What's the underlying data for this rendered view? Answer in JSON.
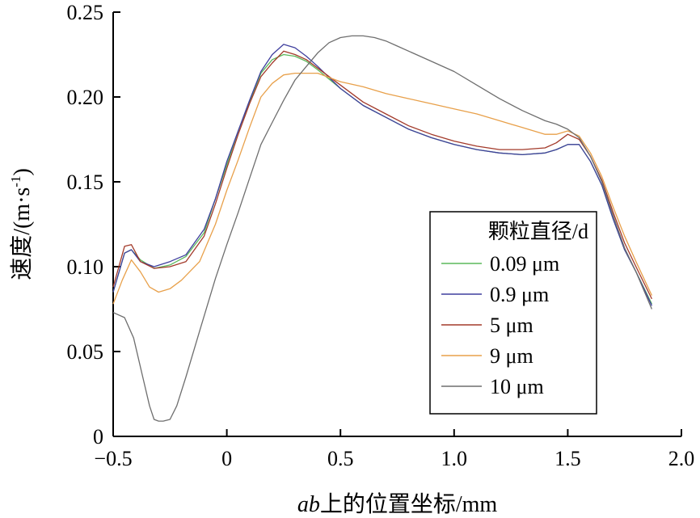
{
  "chart_data": {
    "type": "line",
    "title": "",
    "xlabel": "ab上的位置坐标/mm",
    "xlabel_italic_part": "ab",
    "xlabel_rest": "上的位置坐标/mm",
    "ylabel": "速度/(m·s⁻¹)",
    "ylabel_main": "速度/(m·s",
    "ylabel_sup": "-1",
    "ylabel_close": ")",
    "xlim": [
      -0.5,
      2.0
    ],
    "ylim": [
      0,
      0.25
    ],
    "xticks": [
      -0.5,
      0,
      0.5,
      1.0,
      1.5,
      2.0
    ],
    "xtick_labels": [
      "−0.5",
      "0",
      "0.5",
      "1.0",
      "1.5",
      "2.0"
    ],
    "yticks": [
      0,
      0.05,
      0.1,
      0.15,
      0.2,
      0.25
    ],
    "ytick_labels": [
      "0",
      "0.05",
      "0.10",
      "0.15",
      "0.20",
      "0.25"
    ],
    "grid": false,
    "legend": {
      "title": "颗粒直径/d",
      "placement": "lower-right"
    },
    "series": [
      {
        "name": "0.09 μm",
        "color": "#5cb85c",
        "points": [
          [
            -0.5,
            0.085
          ],
          [
            -0.45,
            0.108
          ],
          [
            -0.42,
            0.11
          ],
          [
            -0.38,
            0.104
          ],
          [
            -0.32,
            0.099
          ],
          [
            -0.25,
            0.101
          ],
          [
            -0.18,
            0.106
          ],
          [
            -0.1,
            0.12
          ],
          [
            -0.05,
            0.14
          ],
          [
            0,
            0.16
          ],
          [
            0.05,
            0.18
          ],
          [
            0.1,
            0.197
          ],
          [
            0.15,
            0.214
          ],
          [
            0.2,
            0.222
          ],
          [
            0.25,
            0.225
          ],
          [
            0.3,
            0.224
          ],
          [
            0.35,
            0.221
          ],
          [
            0.4,
            0.216
          ],
          [
            0.5,
            0.205
          ],
          [
            0.6,
            0.195
          ],
          [
            0.7,
            0.188
          ],
          [
            0.8,
            0.181
          ],
          [
            0.9,
            0.176
          ],
          [
            1.0,
            0.172
          ],
          [
            1.1,
            0.169
          ],
          [
            1.2,
            0.167
          ],
          [
            1.3,
            0.166
          ],
          [
            1.4,
            0.167
          ],
          [
            1.45,
            0.169
          ],
          [
            1.5,
            0.172
          ],
          [
            1.55,
            0.172
          ],
          [
            1.6,
            0.162
          ],
          [
            1.65,
            0.148
          ],
          [
            1.7,
            0.128
          ],
          [
            1.75,
            0.11
          ],
          [
            1.8,
            0.097
          ],
          [
            1.87,
            0.078
          ]
        ]
      },
      {
        "name": "0.9 μm",
        "color": "#3f3f9e",
        "points": [
          [
            -0.5,
            0.085
          ],
          [
            -0.45,
            0.108
          ],
          [
            -0.42,
            0.11
          ],
          [
            -0.38,
            0.103
          ],
          [
            -0.32,
            0.1
          ],
          [
            -0.25,
            0.103
          ],
          [
            -0.18,
            0.107
          ],
          [
            -0.1,
            0.122
          ],
          [
            -0.05,
            0.14
          ],
          [
            0,
            0.162
          ],
          [
            0.05,
            0.18
          ],
          [
            0.1,
            0.198
          ],
          [
            0.15,
            0.215
          ],
          [
            0.2,
            0.225
          ],
          [
            0.25,
            0.231
          ],
          [
            0.3,
            0.229
          ],
          [
            0.35,
            0.224
          ],
          [
            0.4,
            0.218
          ],
          [
            0.5,
            0.205
          ],
          [
            0.6,
            0.195
          ],
          [
            0.7,
            0.188
          ],
          [
            0.8,
            0.181
          ],
          [
            0.9,
            0.176
          ],
          [
            1.0,
            0.172
          ],
          [
            1.1,
            0.169
          ],
          [
            1.2,
            0.167
          ],
          [
            1.3,
            0.166
          ],
          [
            1.4,
            0.167
          ],
          [
            1.45,
            0.169
          ],
          [
            1.5,
            0.172
          ],
          [
            1.55,
            0.172
          ],
          [
            1.6,
            0.162
          ],
          [
            1.65,
            0.148
          ],
          [
            1.7,
            0.128
          ],
          [
            1.75,
            0.11
          ],
          [
            1.8,
            0.097
          ],
          [
            1.87,
            0.077
          ]
        ]
      },
      {
        "name": "5 μm",
        "color": "#a33a2a",
        "points": [
          [
            -0.5,
            0.088
          ],
          [
            -0.45,
            0.112
          ],
          [
            -0.42,
            0.113
          ],
          [
            -0.38,
            0.103
          ],
          [
            -0.32,
            0.099
          ],
          [
            -0.25,
            0.1
          ],
          [
            -0.18,
            0.103
          ],
          [
            -0.1,
            0.118
          ],
          [
            -0.05,
            0.137
          ],
          [
            0,
            0.158
          ],
          [
            0.05,
            0.178
          ],
          [
            0.1,
            0.196
          ],
          [
            0.15,
            0.212
          ],
          [
            0.2,
            0.22
          ],
          [
            0.25,
            0.227
          ],
          [
            0.3,
            0.225
          ],
          [
            0.35,
            0.222
          ],
          [
            0.4,
            0.217
          ],
          [
            0.5,
            0.207
          ],
          [
            0.6,
            0.197
          ],
          [
            0.7,
            0.19
          ],
          [
            0.8,
            0.183
          ],
          [
            0.9,
            0.178
          ],
          [
            1.0,
            0.174
          ],
          [
            1.1,
            0.171
          ],
          [
            1.2,
            0.169
          ],
          [
            1.3,
            0.169
          ],
          [
            1.4,
            0.17
          ],
          [
            1.45,
            0.173
          ],
          [
            1.5,
            0.178
          ],
          [
            1.55,
            0.175
          ],
          [
            1.6,
            0.165
          ],
          [
            1.65,
            0.151
          ],
          [
            1.7,
            0.132
          ],
          [
            1.75,
            0.114
          ],
          [
            1.8,
            0.1
          ],
          [
            1.87,
            0.081
          ]
        ]
      },
      {
        "name": "9 μm",
        "color": "#e8a04a",
        "points": [
          [
            -0.5,
            0.078
          ],
          [
            -0.46,
            0.092
          ],
          [
            -0.42,
            0.104
          ],
          [
            -0.38,
            0.097
          ],
          [
            -0.34,
            0.088
          ],
          [
            -0.3,
            0.085
          ],
          [
            -0.25,
            0.087
          ],
          [
            -0.2,
            0.092
          ],
          [
            -0.12,
            0.103
          ],
          [
            -0.05,
            0.125
          ],
          [
            0,
            0.145
          ],
          [
            0.05,
            0.163
          ],
          [
            0.1,
            0.182
          ],
          [
            0.15,
            0.2
          ],
          [
            0.2,
            0.208
          ],
          [
            0.25,
            0.213
          ],
          [
            0.3,
            0.214
          ],
          [
            0.4,
            0.214
          ],
          [
            0.5,
            0.209
          ],
          [
            0.6,
            0.206
          ],
          [
            0.7,
            0.202
          ],
          [
            0.8,
            0.199
          ],
          [
            0.9,
            0.196
          ],
          [
            1.0,
            0.193
          ],
          [
            1.1,
            0.19
          ],
          [
            1.2,
            0.186
          ],
          [
            1.3,
            0.182
          ],
          [
            1.4,
            0.178
          ],
          [
            1.45,
            0.178
          ],
          [
            1.5,
            0.18
          ],
          [
            1.55,
            0.177
          ],
          [
            1.6,
            0.167
          ],
          [
            1.65,
            0.153
          ],
          [
            1.7,
            0.135
          ],
          [
            1.75,
            0.118
          ],
          [
            1.8,
            0.103
          ],
          [
            1.87,
            0.083
          ]
        ]
      },
      {
        "name": "10 μm",
        "color": "#6e6e6e",
        "points": [
          [
            -0.5,
            0.073
          ],
          [
            -0.45,
            0.07
          ],
          [
            -0.41,
            0.058
          ],
          [
            -0.37,
            0.035
          ],
          [
            -0.34,
            0.018
          ],
          [
            -0.32,
            0.01
          ],
          [
            -0.3,
            0.009
          ],
          [
            -0.28,
            0.009
          ],
          [
            -0.25,
            0.01
          ],
          [
            -0.22,
            0.018
          ],
          [
            -0.18,
            0.035
          ],
          [
            -0.12,
            0.062
          ],
          [
            -0.05,
            0.093
          ],
          [
            0,
            0.113
          ],
          [
            0.05,
            0.132
          ],
          [
            0.1,
            0.152
          ],
          [
            0.15,
            0.172
          ],
          [
            0.2,
            0.185
          ],
          [
            0.25,
            0.198
          ],
          [
            0.3,
            0.21
          ],
          [
            0.35,
            0.218
          ],
          [
            0.4,
            0.226
          ],
          [
            0.45,
            0.232
          ],
          [
            0.5,
            0.235
          ],
          [
            0.55,
            0.236
          ],
          [
            0.6,
            0.236
          ],
          [
            0.65,
            0.235
          ],
          [
            0.7,
            0.233
          ],
          [
            0.75,
            0.23
          ],
          [
            0.8,
            0.227
          ],
          [
            0.9,
            0.221
          ],
          [
            1.0,
            0.215
          ],
          [
            1.1,
            0.207
          ],
          [
            1.2,
            0.199
          ],
          [
            1.3,
            0.192
          ],
          [
            1.4,
            0.186
          ],
          [
            1.45,
            0.184
          ],
          [
            1.5,
            0.181
          ],
          [
            1.55,
            0.176
          ],
          [
            1.6,
            0.165
          ],
          [
            1.65,
            0.15
          ],
          [
            1.7,
            0.13
          ],
          [
            1.75,
            0.111
          ],
          [
            1.8,
            0.097
          ],
          [
            1.87,
            0.075
          ]
        ]
      }
    ]
  }
}
